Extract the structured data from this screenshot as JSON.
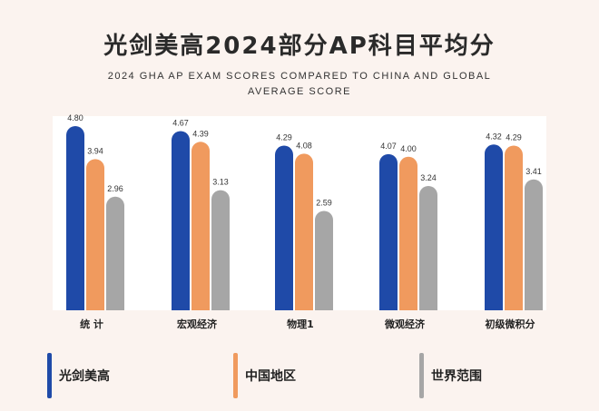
{
  "chart_data": {
    "type": "bar",
    "title": "光剑美高2024部分AP科目平均分",
    "subtitle": "2024 GHA AP EXAM SCORES COMPARED TO CHINA AND GLOBAL AVERAGE SCORE",
    "categories": [
      "统 计",
      "宏观经济",
      "物理1",
      "微观经济",
      "初级微积分"
    ],
    "series": [
      {
        "name": "光剑美高",
        "color": "#1f4aa8",
        "values": [
          4.8,
          4.67,
          4.29,
          4.07,
          4.32
        ]
      },
      {
        "name": "中国地区",
        "color": "#f09a5e",
        "values": [
          3.94,
          4.39,
          4.08,
          4.0,
          4.29
        ]
      },
      {
        "name": "世界范围",
        "color": "#a6a6a6",
        "values": [
          2.96,
          3.13,
          2.59,
          3.24,
          3.41
        ]
      }
    ],
    "ylim": [
      0,
      5
    ],
    "grid": false,
    "legend_position": "bottom"
  }
}
